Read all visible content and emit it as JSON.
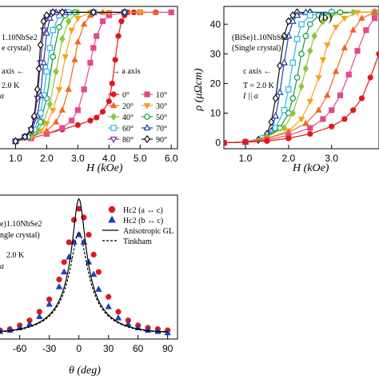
{
  "chart_data": [
    {
      "type": "line",
      "panel": "a",
      "xlabel": "H (kOe)",
      "ylabel": "",
      "xlim": [
        0.5,
        6.2
      ],
      "ylim": [
        -2,
        46
      ],
      "x_ticks": [
        "1.0",
        "2.0",
        "3.0",
        "4.0",
        "5.0",
        "6.0"
      ],
      "x_tick_values": [
        1.0,
        2.0,
        3.0,
        4.0,
        5.0,
        6.0
      ],
      "annotations": {
        "sample_line1": "1.10NbSe2",
        "sample_line2": "e crystal)",
        "axis_left": "axis ←",
        "axis_right": "→ a axis",
        "temperature": "2.0 K"
      },
      "legend_placement": "bottom-right",
      "series": [
        {
          "name": "0°",
          "color": "#e0191c",
          "marker": "circle",
          "filled": true,
          "x": [
            1.0,
            1.5,
            2.0,
            2.5,
            3.0,
            3.4,
            3.6,
            3.8,
            4.0,
            4.1,
            4.2,
            4.3,
            4.4,
            4.5,
            4.6,
            4.8,
            5.0,
            5.5,
            6.0
          ],
          "y": [
            0.5,
            1.5,
            3.0,
            4.5,
            6.0,
            7.5,
            8.5,
            10.5,
            14,
            20,
            28,
            36,
            41,
            43,
            44,
            44,
            44,
            44,
            44
          ]
        },
        {
          "name": "10°",
          "color": "#e24a8c",
          "marker": "square",
          "filled": true,
          "x": [
            1.0,
            1.5,
            2.0,
            2.5,
            2.8,
            3.0,
            3.2,
            3.4,
            3.5,
            3.6,
            3.8,
            4.0,
            4.5,
            5.0,
            6.0
          ],
          "y": [
            0.5,
            1.5,
            3.0,
            5.0,
            7.5,
            11,
            18,
            27,
            32,
            36,
            41,
            43,
            44,
            44,
            44
          ]
        },
        {
          "name": "20°",
          "color": "#f26522",
          "marker": "triangle",
          "filled": true,
          "x": [
            1.0,
            1.5,
            2.0,
            2.3,
            2.5,
            2.7,
            2.9,
            3.0,
            3.2,
            3.4,
            3.8,
            4.5,
            5.5
          ],
          "y": [
            0.5,
            2.0,
            4.0,
            7.0,
            11,
            18,
            28,
            34,
            40,
            43,
            44,
            44,
            44
          ]
        },
        {
          "name": "30°",
          "color": "#f7a21b",
          "marker": "triangle-down",
          "filled": true,
          "x": [
            1.0,
            1.5,
            1.8,
            2.0,
            2.2,
            2.4,
            2.6,
            2.8,
            3.0,
            3.4,
            4.0,
            5.0
          ],
          "y": [
            0.5,
            2.0,
            4.0,
            6.5,
            11,
            18,
            29,
            38,
            42,
            44,
            44,
            44
          ]
        },
        {
          "name": "40°",
          "color": "#8cc63f",
          "marker": "diamond",
          "filled": true,
          "x": [
            1.0,
            1.4,
            1.7,
            1.9,
            2.1,
            2.3,
            2.5,
            2.7,
            3.0,
            3.5,
            4.5
          ],
          "y": [
            0.5,
            2.0,
            4.0,
            7.0,
            13,
            24,
            35,
            41,
            44,
            44,
            44
          ]
        },
        {
          "name": "50°",
          "color": "#0a9a3c",
          "marker": "circle",
          "filled": false,
          "x": [
            1.0,
            1.4,
            1.6,
            1.8,
            2.0,
            2.2,
            2.4,
            2.6,
            2.9,
            3.5,
            4.5
          ],
          "y": [
            0.5,
            2.0,
            3.5,
            7.0,
            15,
            29,
            39,
            43,
            44,
            44,
            44
          ]
        },
        {
          "name": "60°",
          "color": "#29b6e8",
          "marker": "square",
          "filled": false,
          "x": [
            1.0,
            1.3,
            1.6,
            1.8,
            1.9,
            2.0,
            2.1,
            2.2,
            2.4,
            2.7,
            3.5,
            4.5
          ],
          "y": [
            0.5,
            2.0,
            4.5,
            10,
            16,
            24,
            32,
            38,
            43,
            44,
            44,
            44
          ]
        },
        {
          "name": "70°",
          "color": "#1b3faa",
          "marker": "triangle",
          "filled": false,
          "x": [
            1.0,
            1.3,
            1.5,
            1.7,
            1.8,
            1.9,
            2.0,
            2.1,
            2.3,
            2.6,
            3.5,
            4.5
          ],
          "y": [
            0.5,
            2.0,
            4.0,
            9.0,
            16,
            27,
            37,
            42,
            44,
            44,
            44,
            44
          ]
        },
        {
          "name": "80°",
          "color": "#6b2fa0",
          "marker": "triangle-down",
          "filled": false,
          "x": [
            1.0,
            1.3,
            1.5,
            1.6,
            1.7,
            1.8,
            1.9,
            2.0,
            2.2,
            2.5,
            3.5,
            4.5
          ],
          "y": [
            0.5,
            2.0,
            4.5,
            8.0,
            15,
            27,
            38,
            42,
            44,
            44,
            44,
            44
          ]
        },
        {
          "name": "90°",
          "color": "#111111",
          "marker": "diamond",
          "filled": false,
          "x": [
            1.0,
            1.3,
            1.5,
            1.6,
            1.7,
            1.75,
            1.8,
            1.9,
            2.0,
            2.2,
            2.5,
            3.5,
            4.5
          ],
          "y": [
            0.5,
            2.0,
            4.5,
            9.0,
            18,
            25,
            33,
            41,
            43,
            44,
            44,
            44,
            44
          ]
        }
      ]
    },
    {
      "type": "line",
      "panel": "b",
      "panel_label": "(b)",
      "xlabel": "H (kOe)",
      "ylabel": "ρ (μΩcm)",
      "xlim": [
        0.5,
        4.1
      ],
      "ylim": [
        -2,
        46
      ],
      "x_ticks": [
        "1.0",
        "2.0",
        "3.0"
      ],
      "x_tick_values": [
        1.0,
        2.0,
        3.0
      ],
      "y_ticks": [
        "0",
        "10",
        "20",
        "30",
        "40"
      ],
      "y_tick_values": [
        0,
        10,
        20,
        30,
        40
      ],
      "annotations": {
        "sample_line1": "(BiSe)1.10NbSe2",
        "sample_line2": "(Single crystal)",
        "axis_left": "c axis ←",
        "temperature": "T = 2.0 K",
        "current": "I || a"
      },
      "series": [
        {
          "name": "",
          "color": "#111111",
          "marker": "diamond",
          "filled": false,
          "x": [
            0.5,
            1.0,
            1.3,
            1.5,
            1.6,
            1.7,
            1.8,
            1.9,
            2.0,
            2.1,
            2.2,
            2.5,
            3.0,
            4.0
          ],
          "y": [
            0,
            0.3,
            1.0,
            3.0,
            7.0,
            15,
            26,
            36,
            41,
            43,
            44,
            44,
            44,
            44
          ]
        },
        {
          "name": "",
          "color": "#1b3faa",
          "marker": "triangle",
          "filled": false,
          "x": [
            0.5,
            1.0,
            1.4,
            1.6,
            1.7,
            1.8,
            1.9,
            2.0,
            2.1,
            2.2,
            2.4,
            3.0,
            4.0
          ],
          "y": [
            0,
            0.3,
            1.5,
            4.0,
            9.0,
            17,
            27,
            36,
            41,
            43,
            44,
            44,
            44
          ]
        },
        {
          "name": "",
          "color": "#29b6e8",
          "marker": "square",
          "filled": false,
          "x": [
            0.5,
            1.0,
            1.4,
            1.7,
            1.9,
            2.0,
            2.1,
            2.2,
            2.3,
            2.5,
            3.0,
            4.0
          ],
          "y": [
            0,
            0.3,
            1.5,
            5.0,
            11,
            18,
            27,
            35,
            40,
            43,
            44,
            44
          ]
        },
        {
          "name": "",
          "color": "#0a9a3c",
          "marker": "circle",
          "filled": false,
          "x": [
            0.5,
            1.0,
            1.5,
            1.8,
            2.0,
            2.1,
            2.2,
            2.3,
            2.4,
            2.5,
            2.7,
            3.2,
            4.0
          ],
          "y": [
            0,
            0.3,
            2.0,
            5.0,
            10,
            15,
            22,
            30,
            36,
            40,
            43,
            44,
            44
          ]
        },
        {
          "name": "",
          "color": "#8cc63f",
          "marker": "diamond",
          "filled": true,
          "x": [
            0.5,
            1.0,
            1.5,
            1.9,
            2.1,
            2.3,
            2.4,
            2.5,
            2.6,
            2.8,
            3.0,
            3.5,
            4.0
          ],
          "y": [
            0,
            0.3,
            2.0,
            5.0,
            10,
            19,
            25,
            31,
            36,
            41,
            43,
            44,
            44
          ]
        },
        {
          "name": "",
          "color": "#f7a21b",
          "marker": "triangle-down",
          "filled": true,
          "x": [
            0.5,
            1.0,
            1.5,
            2.0,
            2.3,
            2.5,
            2.7,
            2.8,
            2.9,
            3.1,
            3.3,
            3.6,
            4.0
          ],
          "y": [
            0,
            0.3,
            1.5,
            4.0,
            8.0,
            14,
            22,
            28,
            33,
            39,
            42,
            44,
            44
          ]
        },
        {
          "name": "",
          "color": "#f26522",
          "marker": "triangle",
          "filled": true,
          "x": [
            0.5,
            1.0,
            1.5,
            2.0,
            2.4,
            2.7,
            2.9,
            3.1,
            3.3,
            3.5,
            3.7,
            4.0
          ],
          "y": [
            0,
            0.3,
            1.5,
            3.5,
            6.5,
            11,
            16,
            24,
            32,
            38,
            42,
            44
          ]
        },
        {
          "name": "",
          "color": "#e24a8c",
          "marker": "square",
          "filled": true,
          "x": [
            0.5,
            1.0,
            1.5,
            2.0,
            2.5,
            2.8,
            3.0,
            3.2,
            3.4,
            3.6,
            3.8,
            4.0
          ],
          "y": [
            0,
            0.3,
            1.0,
            2.5,
            5.0,
            8.0,
            11,
            16,
            23,
            31,
            38,
            42
          ]
        },
        {
          "name": "",
          "color": "#e0191c",
          "marker": "circle",
          "filled": true,
          "x": [
            0.5,
            1.0,
            1.5,
            2.0,
            2.5,
            3.0,
            3.3,
            3.5,
            3.7,
            3.9,
            4.1
          ],
          "y": [
            0,
            0.2,
            0.6,
            1.5,
            3.0,
            5.5,
            8.0,
            11,
            15,
            22,
            30
          ]
        }
      ]
    },
    {
      "type": "scatter",
      "panel": "c",
      "xlabel": "θ (deg)",
      "ylabel": "",
      "xlim": [
        -80,
        100
      ],
      "ylim": [
        0.4,
        6.2
      ],
      "x_ticks": [
        "-60",
        "-30",
        "0",
        "30",
        "60",
        "90"
      ],
      "x_tick_values": [
        -60,
        -30,
        0,
        30,
        60,
        90
      ],
      "annotations": {
        "sample_line1": "e)1.10NbSe2",
        "sample_line2": "ngle crystal)",
        "temperature": "2.0 K"
      },
      "legend_placement": "top-right",
      "legend": [
        "Hc2 (a ↔ c)",
        "Hc2 (b ↔ c)",
        "Anisotropic GL",
        "Tinkham"
      ],
      "series": [
        {
          "name": "Hc2 (a ↔ c)",
          "color": "#e0191c",
          "marker": "circle",
          "filled": true,
          "x": [
            -80,
            -70,
            -60,
            -50,
            -40,
            -30,
            -20,
            -15,
            -10,
            -5,
            0,
            5,
            10,
            15,
            20,
            30,
            40,
            50,
            60,
            70,
            80,
            90
          ],
          "y": [
            0.75,
            0.8,
            0.95,
            1.15,
            1.5,
            2.0,
            2.8,
            3.5,
            4.3,
            5.2,
            5.65,
            5.3,
            4.6,
            3.8,
            3.1,
            2.1,
            1.5,
            1.15,
            0.95,
            0.85,
            0.8,
            0.75
          ]
        },
        {
          "name": "Hc2 (b ↔ c)",
          "color": "#1f3fbf",
          "marker": "triangle",
          "filled": true,
          "x": [
            -80,
            -70,
            -60,
            -50,
            -40,
            -30,
            -20,
            -15,
            -10,
            -5,
            0,
            5,
            10,
            15,
            20,
            30,
            40,
            50,
            60,
            70,
            80,
            90
          ],
          "y": [
            0.7,
            0.75,
            0.85,
            1.0,
            1.3,
            1.8,
            2.5,
            3.1,
            3.7,
            4.3,
            4.6,
            4.3,
            3.5,
            3.0,
            2.4,
            1.7,
            1.25,
            1.0,
            0.85,
            0.75,
            0.7,
            0.65
          ]
        }
      ]
    }
  ]
}
